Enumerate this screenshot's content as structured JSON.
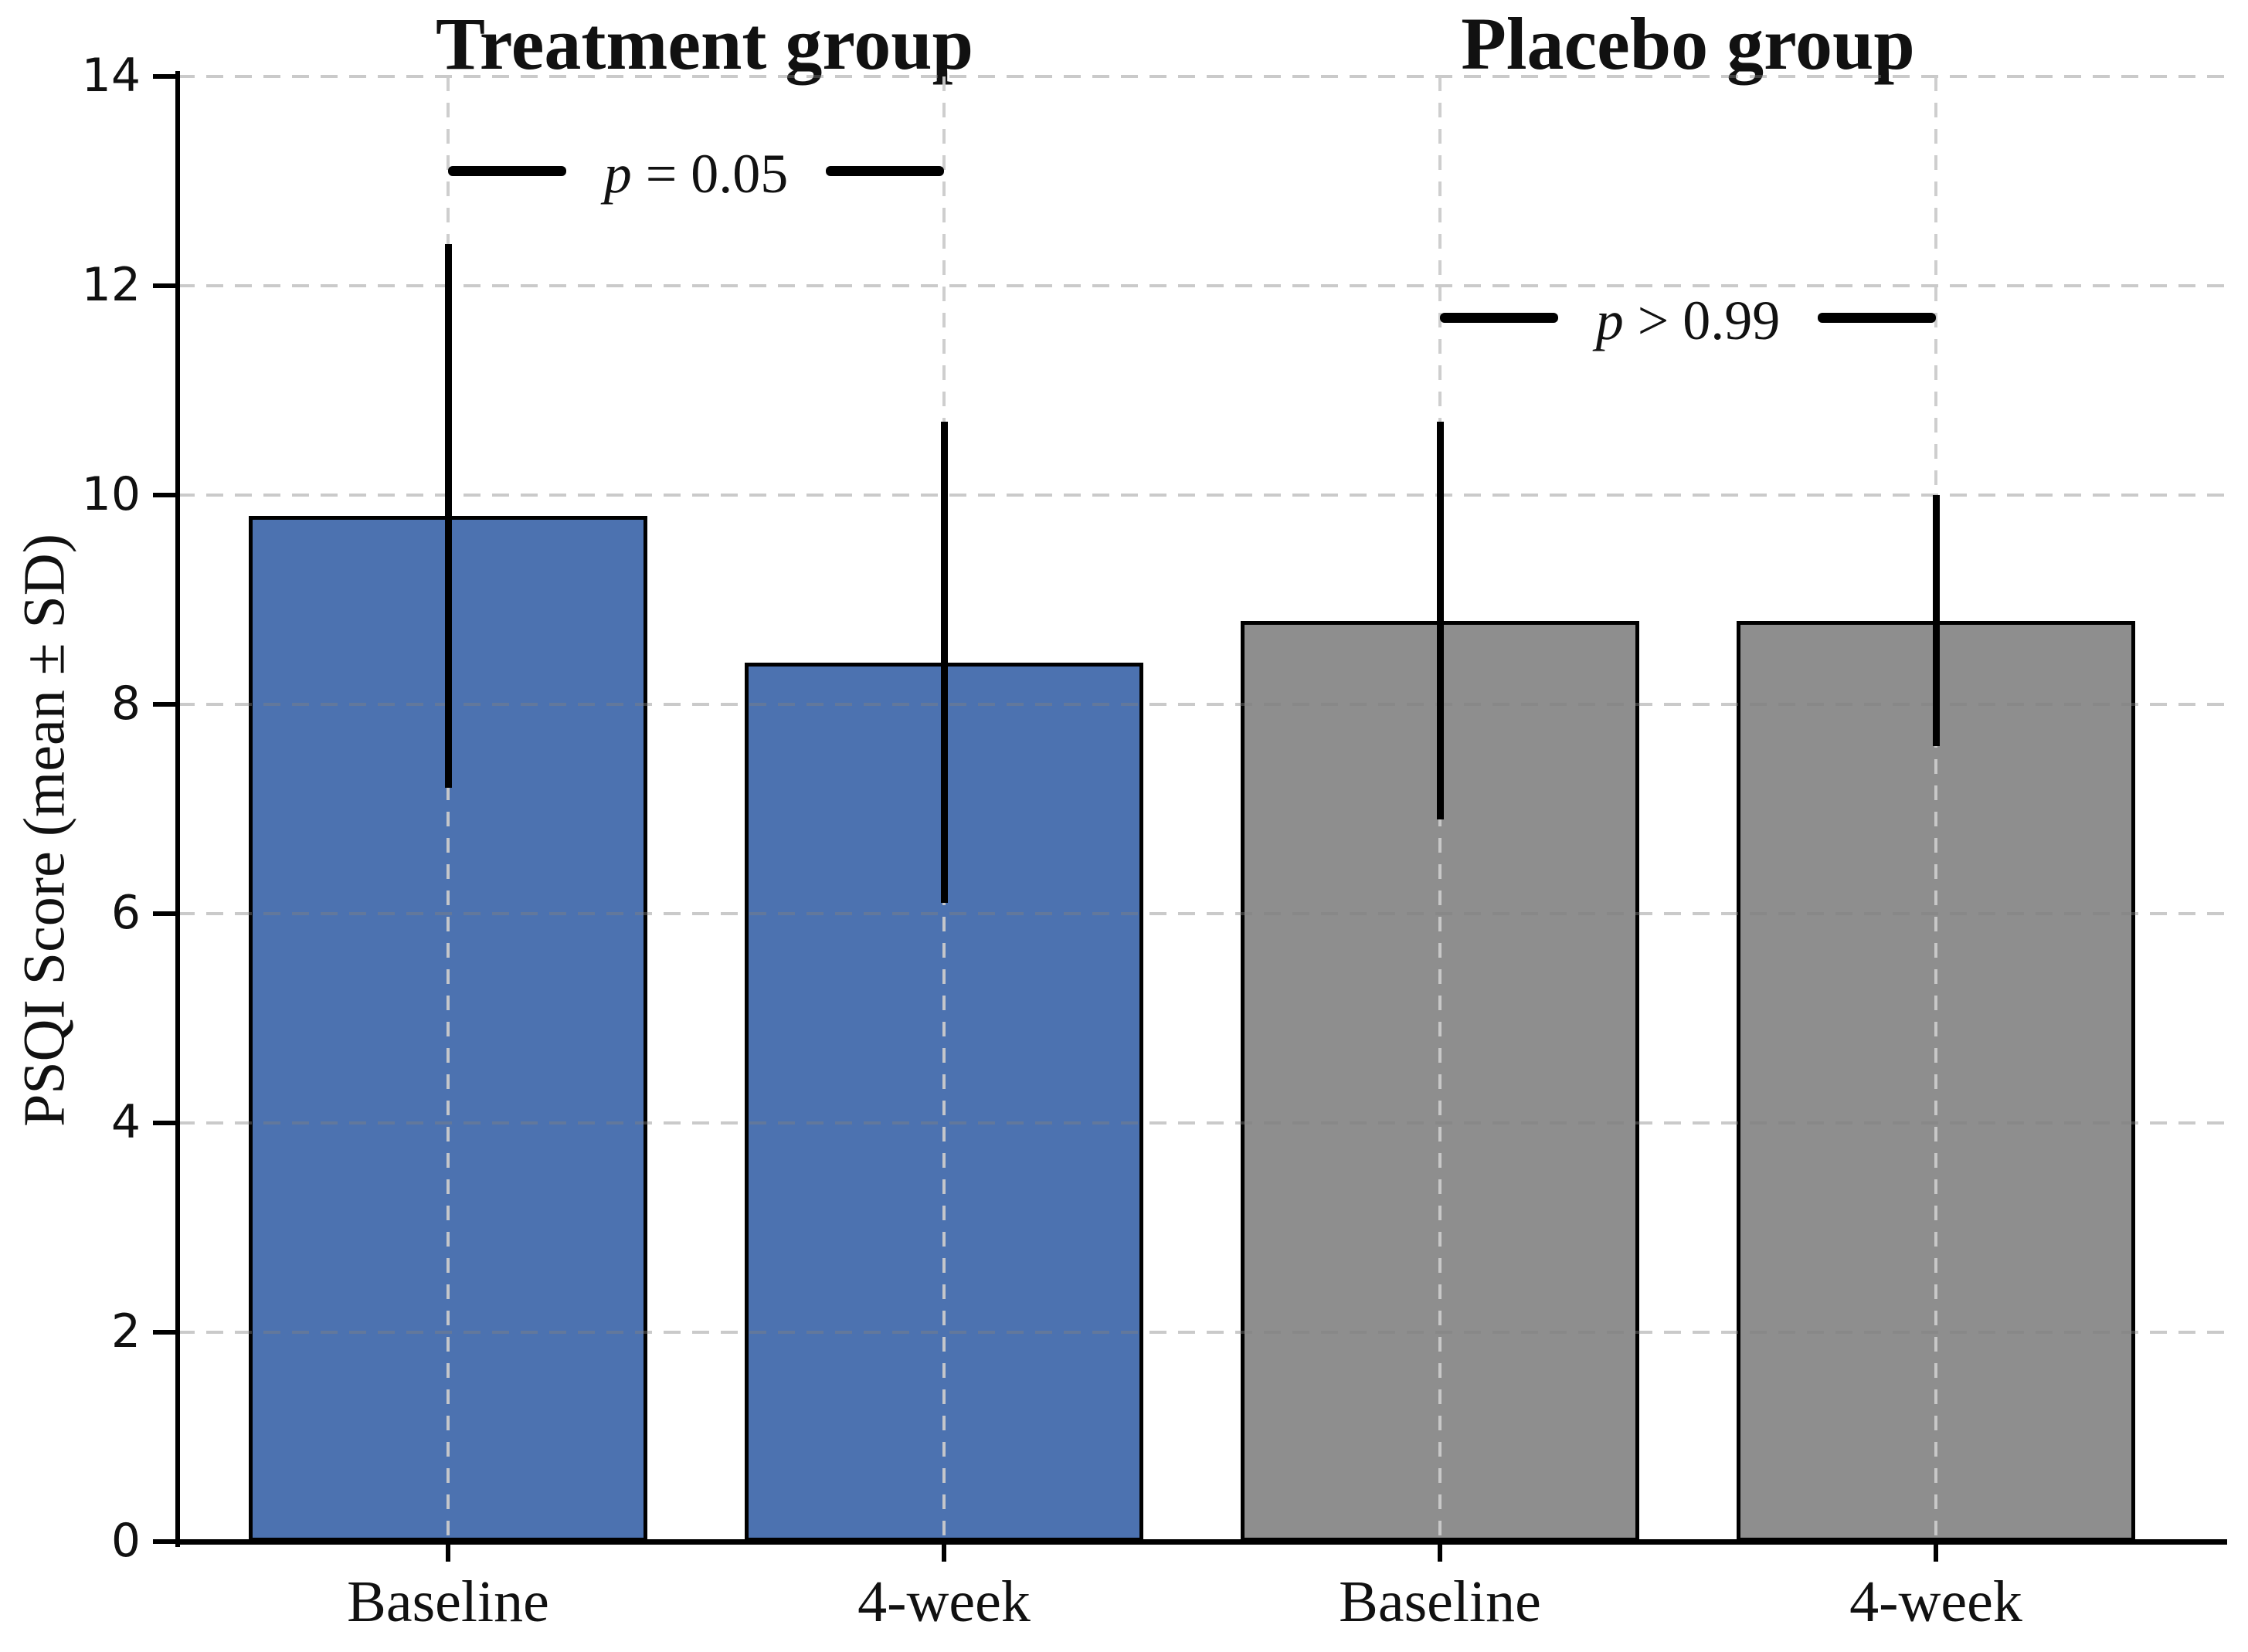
{
  "chart_data": {
    "type": "bar",
    "group_titles": [
      "Treatment group",
      "Placebo group"
    ],
    "groups": [
      "treatment",
      "treatment",
      "placebo",
      "placebo"
    ],
    "categories": [
      "Baseline",
      "4-week",
      "Baseline",
      "4-week"
    ],
    "values": [
      9.8,
      8.4,
      8.8,
      8.8
    ],
    "sd": [
      2.6,
      2.3,
      1.9,
      1.2
    ],
    "bar_colors": [
      "#4C72B0",
      "#4C72B0",
      "#8E8E8E",
      "#8E8E8E"
    ],
    "ylabel": "PSQI Score (mean ± SD)",
    "ylim": [
      0,
      14
    ],
    "yticks": [
      0,
      2,
      4,
      6,
      8,
      10,
      12,
      14
    ],
    "grid": true,
    "annotations": [
      {
        "label": "p = 0.05",
        "from": 0,
        "to": 1,
        "y": 13.1
      },
      {
        "label": "p > 0.99",
        "from": 2,
        "to": 3,
        "y": 11.7
      }
    ],
    "colors": {
      "axis": "#000000",
      "error_bar": "#000000",
      "gridline": "#c8c8c8",
      "annotation": "#000000",
      "bar_edge": "#000000"
    }
  }
}
